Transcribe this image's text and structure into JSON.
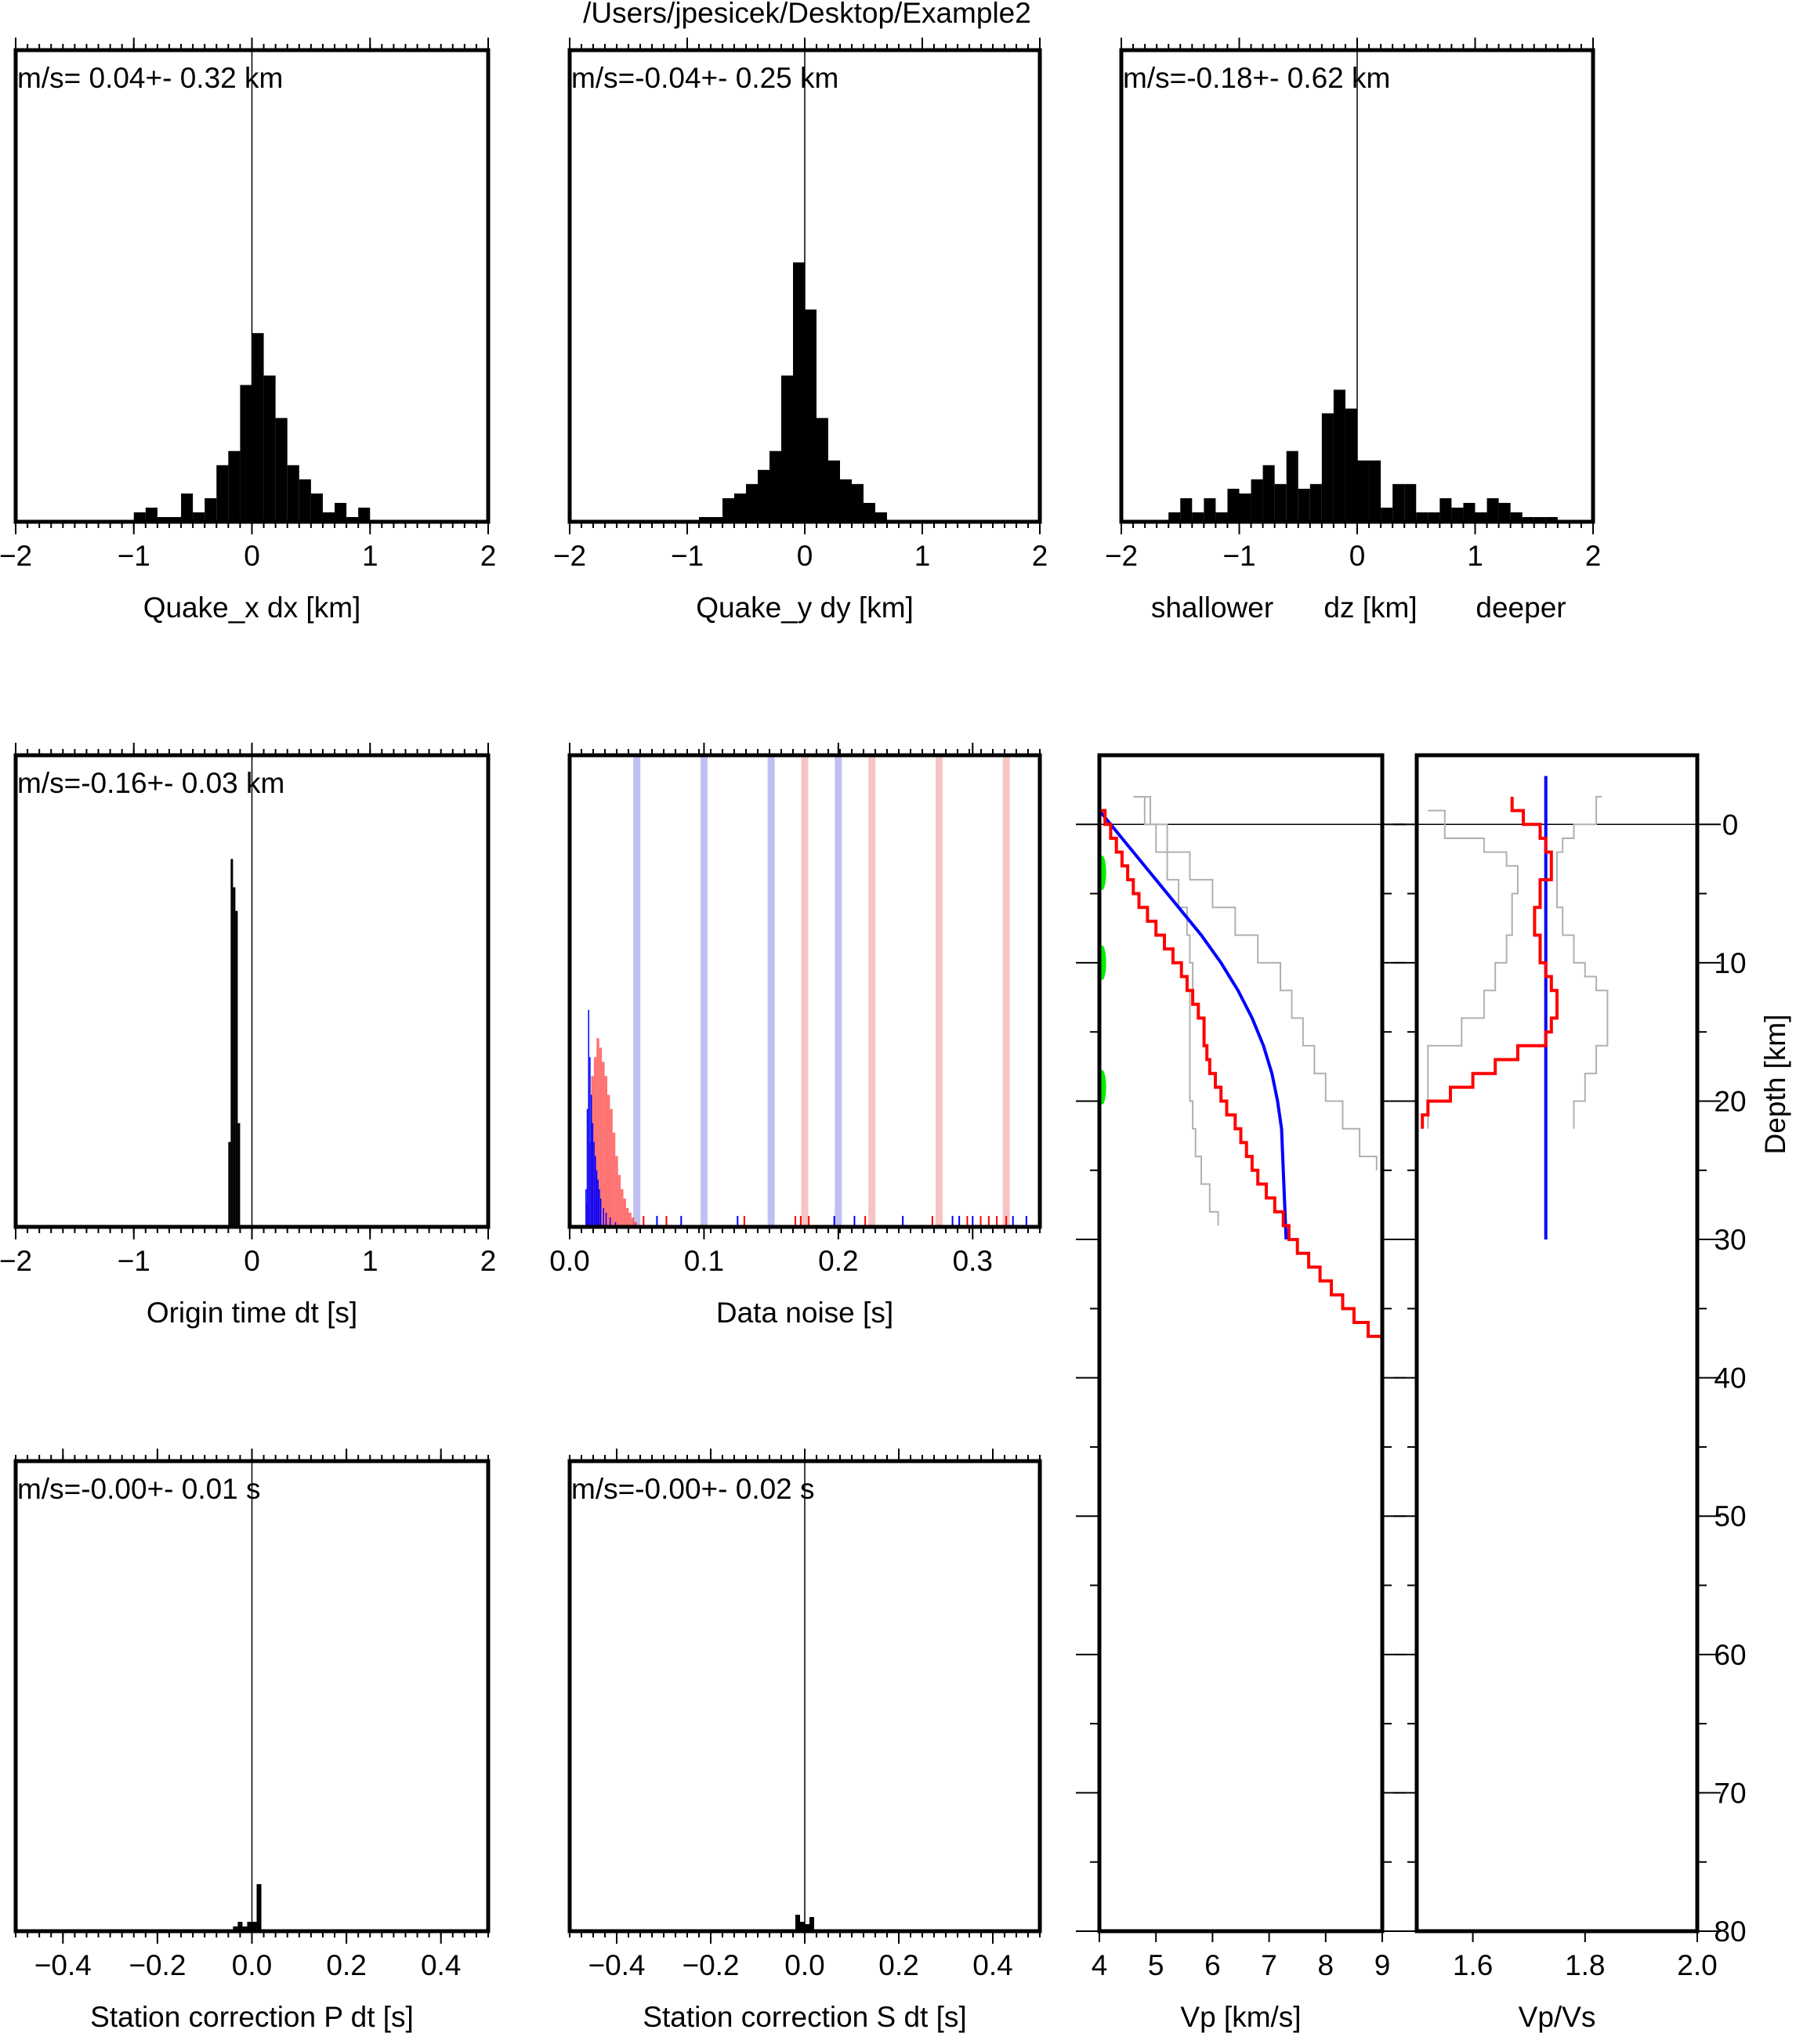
{
  "figure_title": "/Users/jpesicek/Desktop/Example2",
  "chart_data": [
    {
      "id": "quake-x",
      "type": "bar",
      "xlabel": "Quake_x dx [km]",
      "annotation": "m/s= 0.04+- 0.32 km",
      "xlim": [
        -2,
        2
      ],
      "ylim": [
        0,
        100
      ],
      "xticks": [
        -2,
        -1,
        0,
        1,
        2
      ],
      "tick_labels": [
        "−2",
        "−1",
        "0",
        "1",
        "2"
      ],
      "bin_width": 0.1,
      "bins": [
        [
          -0.95,
          2
        ],
        [
          -0.85,
          3
        ],
        [
          -0.75,
          1
        ],
        [
          -0.65,
          1
        ],
        [
          -0.55,
          6
        ],
        [
          -0.45,
          2
        ],
        [
          -0.35,
          5
        ],
        [
          -0.25,
          12
        ],
        [
          -0.15,
          15
        ],
        [
          -0.05,
          29
        ],
        [
          0.05,
          40
        ],
        [
          0.15,
          31
        ],
        [
          0.25,
          22
        ],
        [
          0.35,
          12
        ],
        [
          0.45,
          9
        ],
        [
          0.55,
          6
        ],
        [
          0.65,
          2
        ],
        [
          0.75,
          4
        ],
        [
          0.85,
          1
        ],
        [
          0.95,
          3
        ]
      ]
    },
    {
      "id": "quake-y",
      "type": "bar",
      "xlabel": "Quake_y dy [km]",
      "annotation": "m/s=-0.04+- 0.25 km",
      "xlim": [
        -2,
        2
      ],
      "ylim": [
        0,
        100
      ],
      "xticks": [
        -2,
        -1,
        0,
        1,
        2
      ],
      "tick_labels": [
        "−2",
        "−1",
        "0",
        "1",
        "2"
      ],
      "bin_width": 0.1,
      "bins": [
        [
          -0.85,
          1
        ],
        [
          -0.75,
          1
        ],
        [
          -0.65,
          5
        ],
        [
          -0.55,
          6
        ],
        [
          -0.45,
          8
        ],
        [
          -0.35,
          11
        ],
        [
          -0.25,
          15
        ],
        [
          -0.15,
          31
        ],
        [
          -0.05,
          55
        ],
        [
          0.05,
          45
        ],
        [
          0.15,
          22
        ],
        [
          0.25,
          13
        ],
        [
          0.35,
          9
        ],
        [
          0.45,
          8
        ],
        [
          0.55,
          4
        ],
        [
          0.65,
          2
        ]
      ]
    },
    {
      "id": "quake-z",
      "type": "bar",
      "xlabel": "dz [km]",
      "xlabel_left": "shallower",
      "xlabel_right": "deeper",
      "annotation": "m/s=-0.18+- 0.62 km",
      "xlim": [
        -2,
        2
      ],
      "ylim": [
        0,
        100
      ],
      "xticks": [
        -2,
        -1,
        0,
        1,
        2
      ],
      "tick_labels": [
        "−2",
        "−1",
        "0",
        "1",
        "2"
      ],
      "bin_width": 0.1,
      "bins": [
        [
          -1.55,
          2
        ],
        [
          -1.45,
          5
        ],
        [
          -1.35,
          2
        ],
        [
          -1.25,
          5
        ],
        [
          -1.15,
          2
        ],
        [
          -1.05,
          7
        ],
        [
          -0.95,
          6
        ],
        [
          -0.85,
          9
        ],
        [
          -0.75,
          12
        ],
        [
          -0.65,
          8
        ],
        [
          -0.55,
          15
        ],
        [
          -0.45,
          7
        ],
        [
          -0.35,
          8
        ],
        [
          -0.25,
          23
        ],
        [
          -0.15,
          28
        ],
        [
          -0.05,
          24
        ],
        [
          0.05,
          13
        ],
        [
          0.15,
          13
        ],
        [
          0.25,
          3
        ],
        [
          0.35,
          8
        ],
        [
          0.45,
          8
        ],
        [
          0.55,
          2
        ],
        [
          0.65,
          2
        ],
        [
          0.75,
          5
        ],
        [
          0.85,
          3
        ],
        [
          0.95,
          4
        ],
        [
          1.05,
          2
        ],
        [
          1.15,
          5
        ],
        [
          1.25,
          4
        ],
        [
          1.35,
          2
        ],
        [
          1.45,
          1
        ],
        [
          1.55,
          1
        ],
        [
          1.65,
          1
        ]
      ]
    },
    {
      "id": "origin-time",
      "type": "bar",
      "xlabel": "Origin time dt [s]",
      "annotation": "m/s=-0.16+- 0.03 km",
      "xlim": [
        -2,
        2
      ],
      "ylim": [
        0,
        100
      ],
      "xticks": [
        -2,
        -1,
        0,
        1,
        2
      ],
      "tick_labels": [
        "−2",
        "−1",
        "0",
        "1",
        "2"
      ],
      "bin_width": 0.02,
      "bins": [
        [
          -0.19,
          18
        ],
        [
          -0.17,
          78
        ],
        [
          -0.15,
          72
        ],
        [
          -0.13,
          67
        ],
        [
          -0.11,
          22
        ]
      ]
    },
    {
      "id": "data-noise",
      "type": "bar",
      "xlabel": "Data noise [s]",
      "xlim": [
        0,
        0.35
      ],
      "ylim": [
        0,
        100
      ],
      "xticks": [
        0.0,
        0.1,
        0.2,
        0.3
      ],
      "tick_labels": [
        "0.0",
        "0.1",
        "0.2",
        "0.3"
      ],
      "colors": {
        "p": "#0000ff",
        "s": "#ff0000",
        "p_line": "#c0c0f0",
        "s_line": "#f7c4c4"
      },
      "p_lines": [
        0.05,
        0.1,
        0.15,
        0.2
      ],
      "s_lines": [
        0.175,
        0.225,
        0.275,
        0.325
      ],
      "s_bins": [
        [
          0.013,
          5
        ],
        [
          0.015,
          18
        ],
        [
          0.017,
          32
        ],
        [
          0.019,
          36
        ],
        [
          0.021,
          40
        ],
        [
          0.023,
          38
        ],
        [
          0.025,
          35
        ],
        [
          0.027,
          32
        ],
        [
          0.029,
          28
        ],
        [
          0.031,
          25
        ],
        [
          0.033,
          20
        ],
        [
          0.035,
          15
        ],
        [
          0.037,
          11
        ],
        [
          0.039,
          8
        ],
        [
          0.041,
          6
        ],
        [
          0.043,
          4
        ],
        [
          0.045,
          3
        ],
        [
          0.047,
          2
        ],
        [
          0.049,
          1
        ]
      ],
      "p_bins": [
        [
          0.012,
          8
        ],
        [
          0.013,
          25
        ],
        [
          0.014,
          46
        ],
        [
          0.015,
          36
        ],
        [
          0.016,
          28
        ],
        [
          0.017,
          22
        ],
        [
          0.018,
          18
        ],
        [
          0.019,
          15
        ],
        [
          0.02,
          12
        ],
        [
          0.021,
          10
        ],
        [
          0.022,
          8
        ],
        [
          0.023,
          6
        ],
        [
          0.025,
          4
        ],
        [
          0.027,
          3
        ],
        [
          0.03,
          2
        ],
        [
          0.034,
          1
        ]
      ],
      "s_ticks": [
        0.055,
        0.072,
        0.13,
        0.168,
        0.172,
        0.178,
        0.22,
        0.27,
        0.296,
        0.306,
        0.312,
        0.318,
        0.325
      ],
      "p_ticks": [
        0.065,
        0.083,
        0.125,
        0.197,
        0.212,
        0.248,
        0.285,
        0.29,
        0.3,
        0.33,
        0.34
      ]
    },
    {
      "id": "station-p",
      "type": "bar",
      "xlabel": "Station correction P dt [s]",
      "annotation": "m/s=-0.00+- 0.01 s",
      "xlim": [
        -0.5,
        0.5
      ],
      "ylim": [
        0,
        100
      ],
      "xticks": [
        -0.4,
        -0.2,
        0.0,
        0.2,
        0.4
      ],
      "tick_labels": [
        "−0.4",
        "−0.2",
        "0.0",
        "0.2",
        "0.4"
      ],
      "bin_width": 0.01,
      "bins": [
        [
          -0.035,
          1
        ],
        [
          -0.025,
          2
        ],
        [
          -0.015,
          1
        ],
        [
          -0.005,
          2
        ],
        [
          0.005,
          2
        ],
        [
          0.015,
          10
        ]
      ]
    },
    {
      "id": "station-s",
      "type": "bar",
      "xlabel": "Station correction S dt [s]",
      "annotation": "m/s=-0.00+- 0.02 s",
      "xlim": [
        -0.5,
        0.5
      ],
      "ylim": [
        0,
        100
      ],
      "xticks": [
        -0.4,
        -0.2,
        0.0,
        0.2,
        0.4
      ],
      "tick_labels": [
        "−0.4",
        "−0.2",
        "0.0",
        "0.2",
        "0.4"
      ],
      "bin_width": 0.01,
      "bins": [
        [
          -0.015,
          3.5
        ],
        [
          -0.005,
          2
        ],
        [
          0.005,
          1.5
        ],
        [
          0.015,
          3
        ]
      ]
    },
    {
      "id": "vp-profile",
      "type": "line",
      "xlabel": "Vp [km/s]",
      "xlim": [
        4,
        9
      ],
      "ylim": [
        -5,
        80
      ],
      "xticks": [
        4,
        5,
        6,
        7,
        8,
        9
      ],
      "tick_labels": [
        "4",
        "5",
        "6",
        "7",
        "8",
        "9"
      ],
      "colors": {
        "model": "#ff0000",
        "reference": "#0000ff",
        "bounds": "#b0b0b0",
        "events": "#00ee00"
      },
      "model": [
        [
          4,
          -1
        ],
        [
          4.1,
          0
        ],
        [
          4.2,
          1
        ],
        [
          4.3,
          2
        ],
        [
          4.4,
          3
        ],
        [
          4.5,
          4
        ],
        [
          4.6,
          5
        ],
        [
          4.7,
          6
        ],
        [
          4.85,
          7
        ],
        [
          5.0,
          8
        ],
        [
          5.15,
          9
        ],
        [
          5.3,
          10
        ],
        [
          5.45,
          11
        ],
        [
          5.55,
          12
        ],
        [
          5.65,
          13
        ],
        [
          5.75,
          14
        ],
        [
          5.85,
          15
        ],
        [
          5.85,
          16
        ],
        [
          5.9,
          17
        ],
        [
          5.95,
          18
        ],
        [
          6.05,
          19
        ],
        [
          6.15,
          20
        ],
        [
          6.25,
          21
        ],
        [
          6.4,
          22
        ],
        [
          6.5,
          23
        ],
        [
          6.6,
          24
        ],
        [
          6.7,
          25
        ],
        [
          6.8,
          26
        ],
        [
          6.95,
          27
        ],
        [
          7.1,
          28
        ],
        [
          7.25,
          29
        ],
        [
          7.35,
          30
        ],
        [
          7.5,
          31
        ],
        [
          7.7,
          32
        ],
        [
          7.9,
          33
        ],
        [
          8.1,
          34
        ],
        [
          8.3,
          35
        ],
        [
          8.5,
          36
        ],
        [
          8.75,
          37
        ],
        [
          9.0,
          38
        ]
      ],
      "reference": [
        [
          4,
          -1
        ],
        [
          4.2,
          0
        ],
        [
          4.6,
          2
        ],
        [
          5.0,
          4
        ],
        [
          5.4,
          6
        ],
        [
          5.8,
          8
        ],
        [
          6.15,
          10
        ],
        [
          6.45,
          12
        ],
        [
          6.7,
          14
        ],
        [
          6.9,
          16
        ],
        [
          7.05,
          18
        ],
        [
          7.15,
          20
        ],
        [
          7.22,
          22
        ],
        [
          7.3,
          30
        ]
      ],
      "bound_min": [
        [
          4.6,
          -2
        ],
        [
          4.8,
          0
        ],
        [
          5.0,
          2
        ],
        [
          5.2,
          4
        ],
        [
          5.4,
          6
        ],
        [
          5.55,
          8
        ],
        [
          5.6,
          10
        ],
        [
          5.65,
          12
        ],
        [
          5.6,
          14
        ],
        [
          5.6,
          16
        ],
        [
          5.6,
          18
        ],
        [
          5.6,
          20
        ],
        [
          5.65,
          22
        ],
        [
          5.7,
          24
        ],
        [
          5.8,
          26
        ],
        [
          5.95,
          28
        ],
        [
          6.1,
          29
        ]
      ],
      "bound_max": [
        [
          4.7,
          -2
        ],
        [
          4.9,
          0
        ],
        [
          5.2,
          2
        ],
        [
          5.6,
          4
        ],
        [
          6.0,
          6
        ],
        [
          6.4,
          8
        ],
        [
          6.8,
          10
        ],
        [
          7.2,
          12
        ],
        [
          7.4,
          14
        ],
        [
          7.6,
          16
        ],
        [
          7.8,
          18
        ],
        [
          8.0,
          20
        ],
        [
          8.3,
          22
        ],
        [
          8.6,
          24
        ],
        [
          8.9,
          25
        ]
      ],
      "events": [
        [
          4.05,
          3.5
        ],
        [
          4.05,
          10
        ],
        [
          4.05,
          19
        ]
      ]
    },
    {
      "id": "vpvs-profile",
      "type": "line",
      "xlabel": "Vp/Vs",
      "ylabel": "Depth [km]",
      "xlim": [
        1.5,
        2.0
      ],
      "ylim": [
        -5,
        80
      ],
      "xticks": [
        1.6,
        1.8,
        2.0
      ],
      "tick_labels": [
        "1.6",
        "1.8",
        "2.0"
      ],
      "yticks": [
        0,
        10,
        20,
        30,
        40,
        50,
        60,
        70,
        80
      ],
      "ytick_labels": [
        "0",
        "10",
        "20",
        "30",
        "40",
        "50",
        "60",
        "70",
        "80"
      ],
      "colors": {
        "model": "#ff0000",
        "reference": "#0000ff",
        "bounds": "#b0b0b0"
      },
      "model": [
        [
          1.67,
          -2
        ],
        [
          1.67,
          -1
        ],
        [
          1.69,
          0
        ],
        [
          1.72,
          1
        ],
        [
          1.73,
          2
        ],
        [
          1.74,
          3
        ],
        [
          1.74,
          4
        ],
        [
          1.72,
          5
        ],
        [
          1.72,
          6
        ],
        [
          1.71,
          7
        ],
        [
          1.71,
          8
        ],
        [
          1.72,
          9
        ],
        [
          1.72,
          10
        ],
        [
          1.73,
          11
        ],
        [
          1.74,
          12
        ],
        [
          1.75,
          13
        ],
        [
          1.75,
          14
        ],
        [
          1.74,
          15
        ],
        [
          1.73,
          16
        ],
        [
          1.68,
          17
        ],
        [
          1.64,
          18
        ],
        [
          1.6,
          19
        ],
        [
          1.56,
          20
        ],
        [
          1.52,
          21
        ],
        [
          1.51,
          22
        ]
      ],
      "reference": [
        [
          1.73,
          -3.5
        ],
        [
          1.73,
          30
        ]
      ],
      "bound_min": [
        [
          1.52,
          -1
        ],
        [
          1.55,
          1
        ],
        [
          1.62,
          2
        ],
        [
          1.66,
          3
        ],
        [
          1.68,
          4
        ],
        [
          1.68,
          5
        ],
        [
          1.67,
          6
        ],
        [
          1.67,
          8
        ],
        [
          1.66,
          10
        ],
        [
          1.64,
          12
        ],
        [
          1.62,
          14
        ],
        [
          1.58,
          16
        ],
        [
          1.52,
          18
        ],
        [
          1.52,
          20
        ],
        [
          1.52,
          22
        ]
      ],
      "bound_max": [
        [
          1.83,
          -2
        ],
        [
          1.82,
          0
        ],
        [
          1.78,
          1
        ],
        [
          1.76,
          2
        ],
        [
          1.75,
          3
        ],
        [
          1.75,
          4
        ],
        [
          1.75,
          6
        ],
        [
          1.76,
          7
        ],
        [
          1.76,
          8
        ],
        [
          1.78,
          10
        ],
        [
          1.8,
          11
        ],
        [
          1.82,
          12
        ],
        [
          1.84,
          13
        ],
        [
          1.84,
          16
        ],
        [
          1.82,
          18
        ],
        [
          1.8,
          20
        ],
        [
          1.78,
          22
        ]
      ]
    }
  ]
}
